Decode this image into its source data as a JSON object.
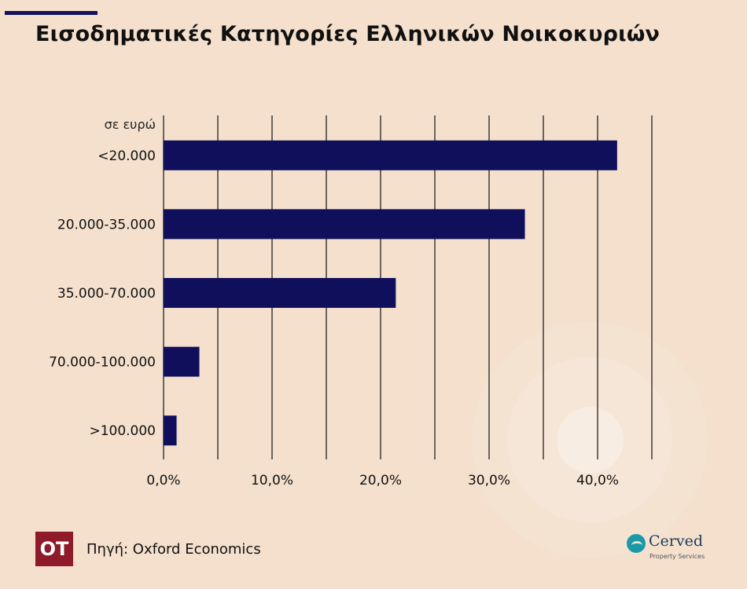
{
  "title": "Εισοδηματικές Κατηγορίες Ελληνικών Νοικοκυριών",
  "chart_data": {
    "type": "bar",
    "orientation": "horizontal",
    "unit_label": "σε ευρώ",
    "categories": [
      "<20.000",
      "20.000-35.000",
      "35.000-70.000",
      "70.000-100.000",
      ">100.000"
    ],
    "values": [
      41.8,
      33.3,
      21.4,
      3.3,
      1.2
    ],
    "x_ticks": [
      0,
      10,
      20,
      30,
      40
    ],
    "x_tick_labels": [
      "0,0%",
      "10,0%",
      "20,0%",
      "30,0%",
      "40,0%"
    ],
    "xlim": [
      0,
      45
    ],
    "gridlines": [
      0,
      5,
      10,
      15,
      20,
      25,
      30,
      35,
      40,
      45
    ],
    "bar_color": "#0f0f5c"
  },
  "footer": {
    "logo_text": "OT",
    "source": "Πηγή: Oxford Economics",
    "brand_name": "Cerved",
    "brand_sub": "Property Services"
  }
}
